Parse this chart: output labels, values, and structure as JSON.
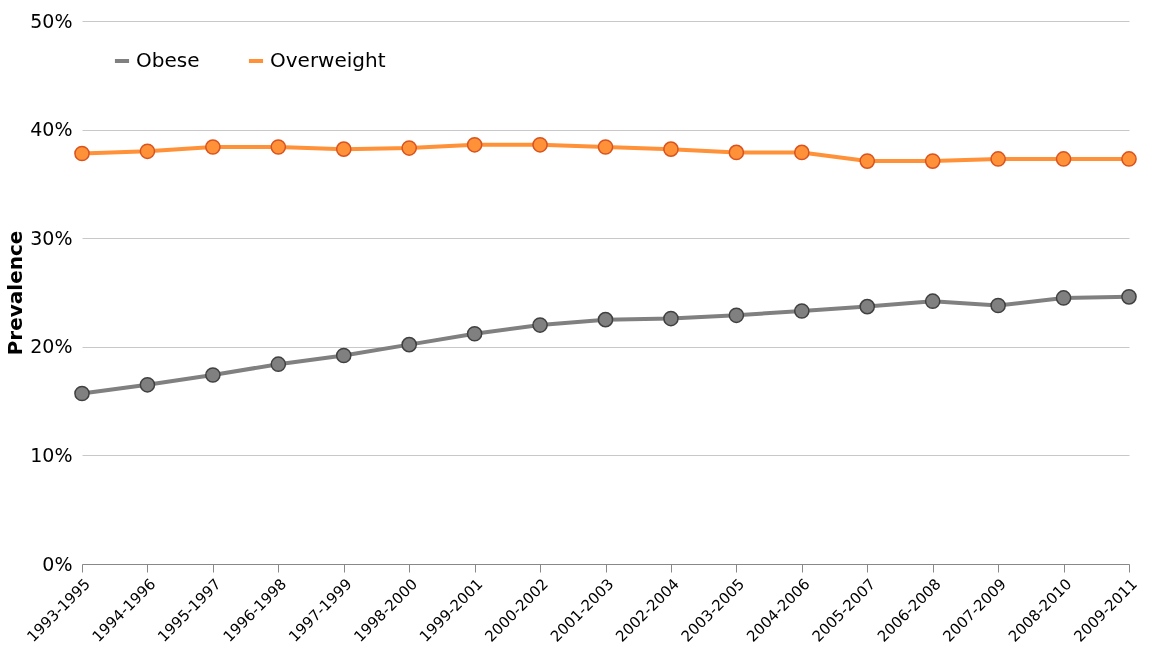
{
  "chart_data": {
    "type": "line",
    "ylabel": "Prevalence",
    "categories": [
      "1993-1995",
      "1994-1996",
      "1995-1997",
      "1996-1998",
      "1997-1999",
      "1998-2000",
      "1999-2001",
      "2000-2002",
      "2001-2003",
      "2002-2004",
      "2003-2005",
      "2004-2006",
      "2005-2007",
      "2006-2008",
      "2007-2009",
      "2008-2010",
      "2009-2011"
    ],
    "series": [
      {
        "name": "Obese",
        "color": "#808080",
        "values": [
          15.7,
          16.5,
          17.4,
          18.4,
          19.2,
          20.2,
          21.2,
          22.0,
          22.5,
          22.6,
          22.9,
          23.3,
          23.7,
          24.2,
          23.8,
          24.5,
          24.6
        ]
      },
      {
        "name": "Overweight",
        "color": "#ff9138",
        "values": [
          37.8,
          38.0,
          38.4,
          38.4,
          38.2,
          38.3,
          38.6,
          38.6,
          38.4,
          38.2,
          37.9,
          37.9,
          37.1,
          37.1,
          37.3,
          37.3,
          37.3
        ]
      }
    ],
    "ylim": [
      0,
      50
    ],
    "yticks": [
      {
        "value": 0,
        "label": "0%"
      },
      {
        "value": 10,
        "label": "10%"
      },
      {
        "value": 20,
        "label": "20%"
      },
      {
        "value": 30,
        "label": "30%"
      },
      {
        "value": 40,
        "label": "40%"
      },
      {
        "value": 50,
        "label": "50%"
      }
    ],
    "grid": "y",
    "legend": "top left",
    "marker": "circle",
    "line_style": "solid"
  }
}
